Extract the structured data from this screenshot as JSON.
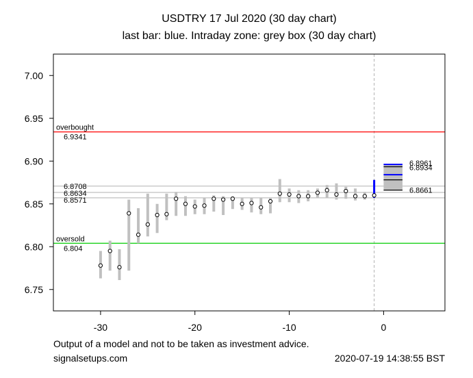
{
  "colors": {
    "bar": "#c0c0c0",
    "last_bar": "#0000ff",
    "overbought": "#ff0000",
    "oversold": "#00cc00",
    "zone_fill": "#c0c0c0",
    "zone_lines": "#000000",
    "zone_blue": "#0000ff",
    "ref_lines": "#c0c0c0",
    "vline": "#b0b0b0"
  },
  "chart_data": {
    "type": "range-bar",
    "title": "USDTRY 17 Jul 2020  (30 day chart)",
    "subtitle": "last bar: blue. Intraday zone: grey box (30 day chart)",
    "xlabel": "",
    "ylabel": "",
    "xlim": [
      -35,
      6.5
    ],
    "ylim": [
      6.725,
      7.025
    ],
    "x_ticks": [
      -30,
      -20,
      -10,
      0
    ],
    "x_tick_labels": [
      "-30",
      "-20",
      "-10",
      "0"
    ],
    "y_ticks": [
      6.75,
      6.8,
      6.85,
      6.9,
      6.95,
      7.0
    ],
    "y_tick_labels": [
      "6.75",
      "6.80",
      "6.85",
      "6.90",
      "6.95",
      "7.00"
    ],
    "grid": false,
    "bars": [
      {
        "x": -30,
        "low": 6.763,
        "high": 6.795,
        "close": 6.778
      },
      {
        "x": -29,
        "low": 6.772,
        "high": 6.807,
        "close": 6.795
      },
      {
        "x": -28,
        "low": 6.761,
        "high": 6.797,
        "close": 6.776
      },
      {
        "x": -27,
        "low": 6.772,
        "high": 6.855,
        "close": 6.839
      },
      {
        "x": -26,
        "low": 6.804,
        "high": 6.845,
        "close": 6.814
      },
      {
        "x": -25,
        "low": 6.812,
        "high": 6.862,
        "close": 6.826
      },
      {
        "x": -24,
        "low": 6.816,
        "high": 6.85,
        "close": 6.837
      },
      {
        "x": -23,
        "low": 6.831,
        "high": 6.862,
        "close": 6.838
      },
      {
        "x": -22,
        "low": 6.836,
        "high": 6.864,
        "close": 6.856
      },
      {
        "x": -21,
        "low": 6.836,
        "high": 6.859,
        "close": 6.85
      },
      {
        "x": -20,
        "low": 6.838,
        "high": 6.855,
        "close": 6.847
      },
      {
        "x": -19,
        "low": 6.838,
        "high": 6.857,
        "close": 6.848
      },
      {
        "x": -18,
        "low": 6.841,
        "high": 6.86,
        "close": 6.856
      },
      {
        "x": -17,
        "low": 6.837,
        "high": 6.859,
        "close": 6.855
      },
      {
        "x": -16,
        "low": 6.844,
        "high": 6.859,
        "close": 6.856
      },
      {
        "x": -15,
        "low": 6.843,
        "high": 6.857,
        "close": 6.85
      },
      {
        "x": -14,
        "low": 6.84,
        "high": 6.857,
        "close": 6.851
      },
      {
        "x": -13,
        "low": 6.838,
        "high": 6.857,
        "close": 6.846
      },
      {
        "x": -12,
        "low": 6.839,
        "high": 6.857,
        "close": 6.853
      },
      {
        "x": -11,
        "low": 6.852,
        "high": 6.879,
        "close": 6.862
      },
      {
        "x": -10,
        "low": 6.852,
        "high": 6.868,
        "close": 6.861
      },
      {
        "x": -9,
        "low": 6.851,
        "high": 6.866,
        "close": 6.859
      },
      {
        "x": -8,
        "low": 6.853,
        "high": 6.866,
        "close": 6.859
      },
      {
        "x": -7,
        "low": 6.857,
        "high": 6.868,
        "close": 6.863
      },
      {
        "x": -6,
        "low": 6.857,
        "high": 6.872,
        "close": 6.866
      },
      {
        "x": -5,
        "low": 6.855,
        "high": 6.874,
        "close": 6.861
      },
      {
        "x": -4,
        "low": 6.856,
        "high": 6.87,
        "close": 6.865
      },
      {
        "x": -3,
        "low": 6.854,
        "high": 6.868,
        "close": 6.859
      },
      {
        "x": -2,
        "low": 6.855,
        "high": 6.864,
        "close": 6.859
      },
      {
        "x": -1,
        "low": 6.857,
        "high": 6.878,
        "close": 6.86,
        "last": true
      }
    ],
    "reference_lines": [
      {
        "value": 6.9341,
        "label": "6.9341",
        "name": "overbought",
        "color": "#ff0000"
      },
      {
        "value": 6.804,
        "label": "6.804",
        "name": "oversold",
        "color": "#00cc00"
      },
      {
        "value": 6.8708,
        "label": "6.8708",
        "color": "#c0c0c0"
      },
      {
        "value": 6.8634,
        "label": "6.8634",
        "color": "#c0c0c0"
      },
      {
        "value": 6.8571,
        "label": "6.8571",
        "color": "#c0c0c0"
      }
    ],
    "vertical_line_x": -1,
    "intraday_zone": {
      "x_from": 0,
      "x_to": 2,
      "low": 6.8661,
      "high": 6.8961,
      "lines": [
        {
          "value": 6.8961,
          "label": "6.8961",
          "color": "#0000ff"
        },
        {
          "value": 6.8934,
          "label": "6.8934",
          "color": "#000000"
        },
        {
          "value": 6.8841,
          "label": "",
          "color": "#0000ff"
        },
        {
          "value": 6.8781,
          "label": "",
          "color": "#000000"
        },
        {
          "value": 6.8661,
          "label": "6.8661",
          "color": "#000000"
        }
      ]
    }
  },
  "footer": {
    "disclaimer": "Output of a model and not to be taken as investment advice.",
    "site": "signalsetups.com",
    "timestamp": "2020-07-19 14:38:55 BST"
  }
}
